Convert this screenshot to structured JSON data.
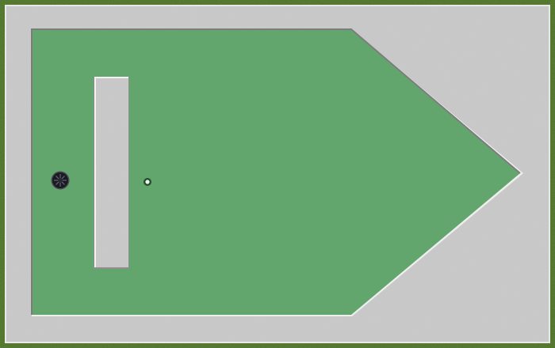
{
  "game": {
    "type": "mini-golf-hole",
    "colors": {
      "grass_outer": "#4e6f2c",
      "concrete": "#c9c9c9",
      "concrete_dark": "#9a9a9a",
      "concrete_light": "#efefef",
      "green": "#62a66e",
      "hole": "#1a1a22",
      "ball": "#2d6a3a",
      "ball_highlight": "#f2f2f2"
    },
    "icons": {
      "hole": "golf-hole-icon",
      "ball": "golf-ball-icon"
    }
  }
}
